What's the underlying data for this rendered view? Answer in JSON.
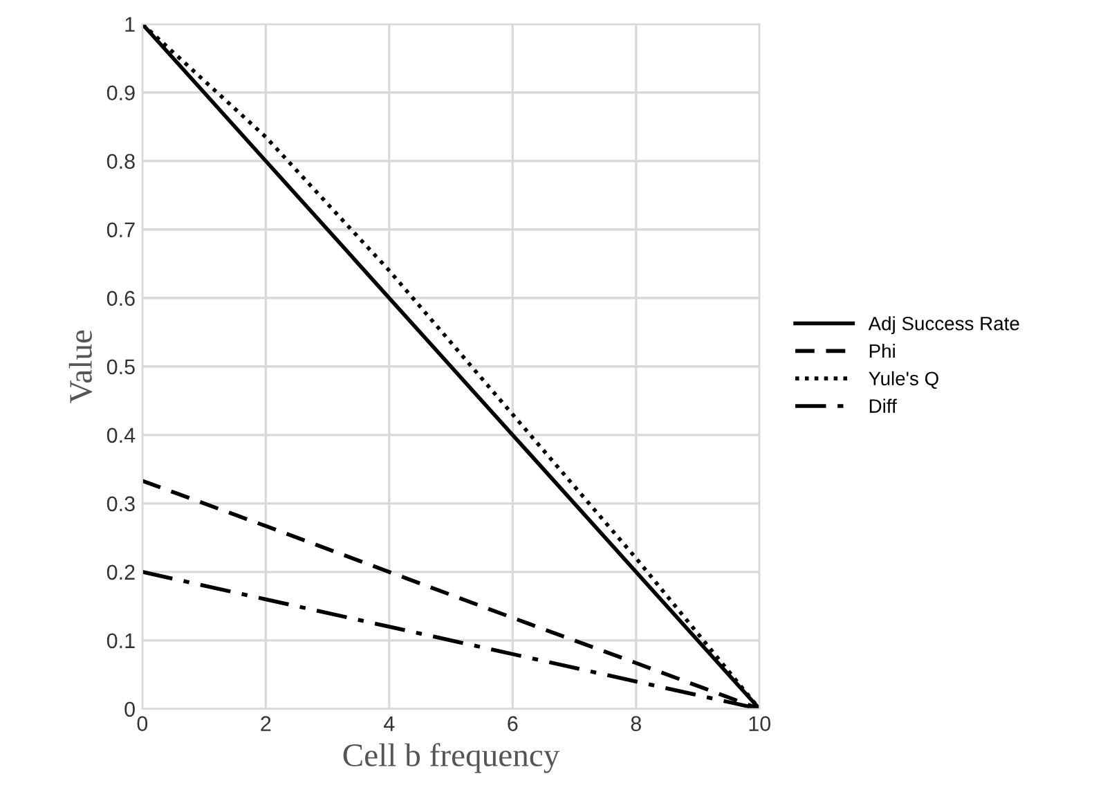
{
  "chart_data": {
    "type": "line",
    "xlabel": "Cell b frequency",
    "ylabel": "Value",
    "x": [
      0,
      2,
      4,
      6,
      8,
      10
    ],
    "series": [
      {
        "name": "Adj Success Rate",
        "color": "#000000",
        "line_style": "solid",
        "values": [
          1,
          0.8,
          0.6,
          0.4,
          0.2,
          0
        ]
      },
      {
        "name": "Phi",
        "color": "#000000",
        "line_style": "dashed",
        "values": [
          0.333,
          0.267,
          0.2,
          0.133,
          0.067,
          0
        ]
      },
      {
        "name": "Yule's Q",
        "color": "#000000",
        "line_style": "dotted",
        "values": [
          1,
          0.835,
          0.64,
          0.43,
          0.22,
          0
        ]
      },
      {
        "name": "Diff",
        "color": "#000000",
        "line_style": "dashdot",
        "values": [
          0.2,
          0.16,
          0.12,
          0.08,
          0.04,
          0
        ]
      }
    ],
    "xlim": [
      0,
      10
    ],
    "xticks": [
      0,
      2,
      4,
      6,
      8,
      10
    ],
    "ylim": [
      0,
      1
    ],
    "yticks": [
      0,
      0.1,
      0.2,
      0.3,
      0.4,
      0.5,
      0.6,
      0.7,
      0.8,
      0.9,
      1
    ],
    "grid": true,
    "legend": "right",
    "marker": "none"
  }
}
